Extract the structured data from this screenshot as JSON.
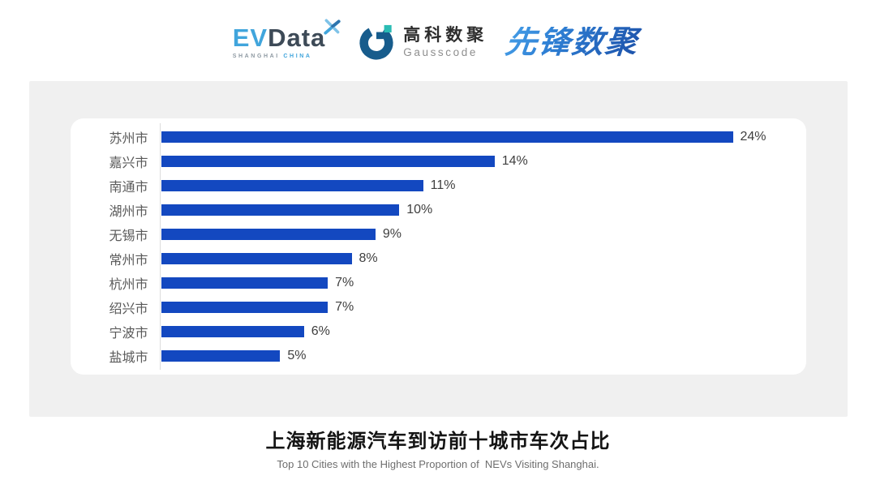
{
  "header": {
    "logos": {
      "evdata": {
        "ev": "EV",
        "data": "Data",
        "sub_left": "SHANGHAI",
        "sub_right": "CHINA",
        "ev_color": "#41A5DC",
        "data_color": "#3D4A57"
      },
      "gausscode": {
        "cn": "高科数聚",
        "en": "Gausscode",
        "mark_color": "#175C8C",
        "mark_accent_color": "#2BBCB4"
      },
      "xianfeng": {
        "text": "先锋数聚",
        "color": "#2B6FC8"
      }
    }
  },
  "chart_data": {
    "type": "bar",
    "orientation": "horizontal",
    "title": "上海新能源汽车到访前十城市车次占比",
    "subtitle": "Top 10 Cities with the Highest Proportion of  NEVs Visiting Shanghai.",
    "categories": [
      "苏州市",
      "嘉兴市",
      "南通市",
      "湖州市",
      "无锡市",
      "常州市",
      "杭州市",
      "绍兴市",
      "宁波市",
      "盐城市"
    ],
    "values": [
      24,
      14,
      11,
      10,
      9,
      8,
      7,
      7,
      6,
      5
    ],
    "value_labels": [
      "24%",
      "14%",
      "11%",
      "10%",
      "9%",
      "8%",
      "7%",
      "7%",
      "6%",
      "5%"
    ],
    "unit": "%",
    "xlim": [
      0,
      24
    ],
    "bar_color": "#1348C0",
    "grid": false,
    "legend": false,
    "value_labels_position": "end-of-bar"
  },
  "footer": {
    "title": "上海新能源汽车到访前十城市车次占比",
    "subtitle": "Top 10 Cities with the Highest Proportion of  NEVs Visiting Shanghai."
  },
  "colors": {
    "bar": "#1348C0",
    "card_bg": "#f0f0f0",
    "panel_bg": "#ffffff",
    "category_label": "#5a5a5a",
    "value_label": "#3f3f3f",
    "axis_line": "#dcdcdc",
    "title": "#141414",
    "subtitle": "#6e6e6e"
  }
}
